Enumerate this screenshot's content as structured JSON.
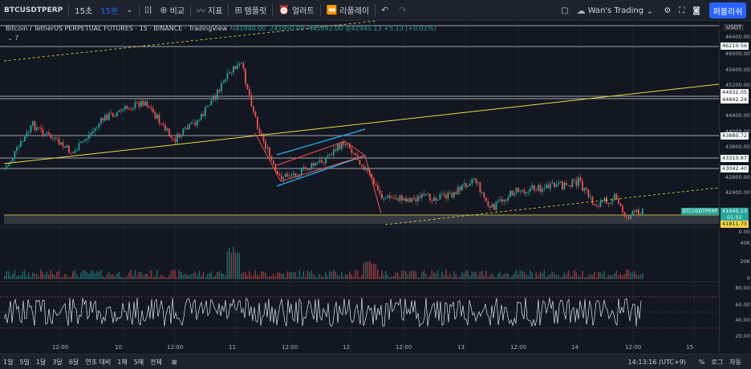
{
  "toolbar": {
    "symbol": "BTCUSDTPERP",
    "interval_1": "15초",
    "interval_2": "15분",
    "compare": "비교",
    "indicators": "지표",
    "templates": "템플릿",
    "alert": "얼러트",
    "replay": "리플레이",
    "layout_name": "Wan's Trading",
    "publish": "퍼블리쉬"
  },
  "legend": {
    "title": "Bitcoin / TetherUS PERPETUAL FUTURES · 15 · BINANCE · TradingView",
    "ohlc": "시41940.00 고41950.00 저41892.00 종41945.13 +5.13 (+0.01%)",
    "collapse": "⌄ 7"
  },
  "price_axis": {
    "currency": "USDT",
    "ticks": [
      "46400.00",
      "46000.00",
      "45600.00",
      "45200.00",
      "44400.00",
      "44000.00",
      "43600.00",
      "42800.00",
      "42400.00"
    ],
    "level_labels": [
      "46210.56",
      "44932.05",
      "44842.24",
      "43880.72",
      "43310.87",
      "43042.40"
    ],
    "current_price": "41945.13",
    "countdown": "01:51",
    "low_label": "41811.73",
    "ticker_tag": "BTCUSDTPERP",
    "volume_ticks": [
      "0.00",
      "40K",
      "20K",
      "0"
    ],
    "rsi_ticks": [
      "80.00",
      "60.00",
      "40.00",
      "20.00"
    ]
  },
  "time_axis": {
    "labels": [
      "12:00",
      "10",
      "12:00",
      "11",
      "12:00",
      "12",
      "12:00",
      "13",
      "12:00",
      "14",
      "12:00",
      "15"
    ]
  },
  "bottom": {
    "ranges": [
      "1일",
      "5일",
      "1달",
      "3달",
      "6달",
      "연초 대비",
      "1해",
      "5해",
      "전체"
    ],
    "clock": "14:13:16 (UTC+9)",
    "percent": "%",
    "log": "로그",
    "auto": "자동"
  },
  "colors": {
    "up": "#26a69a",
    "down": "#ef5350",
    "accent": "#2962ff",
    "trendline": "#f5d742",
    "channel": "#29b6f6"
  }
}
